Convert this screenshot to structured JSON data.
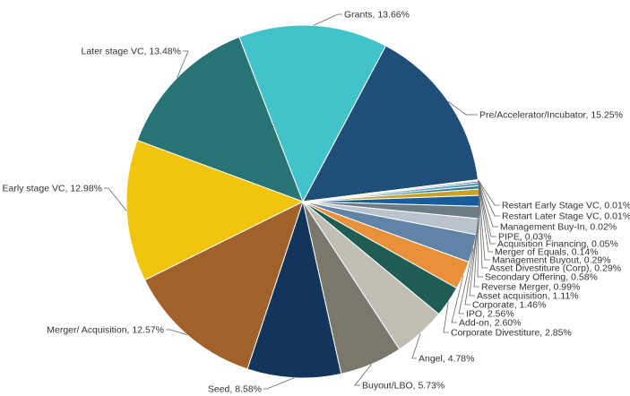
{
  "chart_data": {
    "type": "pie",
    "slices": [
      {
        "label": "Pre/Accelerator/Incubator",
        "value": 15.25,
        "display": "Pre/Accelerator/Incubator, 15.25%",
        "color": "#1f4e79"
      },
      {
        "label": "Restart Early Stage VC",
        "value": 0.01,
        "display": "Restart Early Stage VC, 0.01%",
        "color": "#d4a017"
      },
      {
        "label": "Restart Later Stage VC",
        "value": 0.01,
        "display": "Restart Later Stage VC, 0.01%",
        "color": "#2aa3c9"
      },
      {
        "label": "Management Buy-In",
        "value": 0.02,
        "display": "Management Buy-In, 0.02%",
        "color": "#4f6b8c"
      },
      {
        "label": "PIPE",
        "value": 0.03,
        "display": "PIPE, 0.03%",
        "color": "#e07b2b"
      },
      {
        "label": "Acquisition Financing",
        "value": 0.05,
        "display": "Acquisition Financing, 0.05%",
        "color": "#8b5a2b"
      },
      {
        "label": "Merger of Equals",
        "value": 0.14,
        "display": "Merger of Equals, 0.14%",
        "color": "#1b3a5c"
      },
      {
        "label": "Management Buyout",
        "value": 0.29,
        "display": "Management Buyout, 0.29%",
        "color": "#5aa0c8"
      },
      {
        "label": "Asset Divestiture (Corp)",
        "value": 0.29,
        "display": "Asset Divestiture (Corp), 0.29%",
        "color": "#2b7a8c"
      },
      {
        "label": "Secondary Offering",
        "value": 0.58,
        "display": "Secondary Offering, 0.58%",
        "color": "#c9a227"
      },
      {
        "label": "Reverse Merger",
        "value": 0.99,
        "display": "Reverse Merger, 0.99%",
        "color": "#175d9c"
      },
      {
        "label": "Asset acquisition",
        "value": 1.11,
        "display": "Asset acquisition, 1.11%",
        "color": "#6d7b85"
      },
      {
        "label": "Corporate",
        "value": 1.46,
        "display": "Corporate, 1.46%",
        "color": "#b9c3cc"
      },
      {
        "label": "IPO",
        "value": 2.56,
        "display": "IPO, 2.56%",
        "color": "#5f84a8"
      },
      {
        "label": "Add-on",
        "value": 2.6,
        "display": "Add-on, 2.60%",
        "color": "#c9a114"
      },
      {
        "label": "Corporate Divestiture",
        "value": 2.85,
        "display": "Corporate Divestiture, 2.85%",
        "color": "#1f5d54"
      },
      {
        "label": "Angel",
        "value": 4.78,
        "display": "Angel, 4.78%",
        "color": "#c1bfb4"
      },
      {
        "label": "Buyout/LBO",
        "value": 5.73,
        "display": "Buyout/LBO, 5.73%",
        "color": "#7a776c"
      },
      {
        "label": "Seed",
        "value": 8.58,
        "display": "Seed, 8.58%",
        "color": "#12355b"
      },
      {
        "label": "Merger/ Acquisition",
        "value": 12.57,
        "display": "Merger/ Acquisition, 12.57%",
        "color": "#a0622a"
      },
      {
        "label": "Early stage VC",
        "value": 12.98,
        "display": "Early stage VC, 12.98%",
        "color": "#f1c40f"
      },
      {
        "label": "Later stage VC",
        "value": 13.48,
        "display": "Later stage VC, 13.48%",
        "color": "#287373"
      },
      {
        "label": "Grants",
        "value": 13.66,
        "display": "Grants, 13.66%",
        "color": "#41c3c9"
      }
    ],
    "orange_override": {
      "Add-on": "#e8913a"
    }
  }
}
